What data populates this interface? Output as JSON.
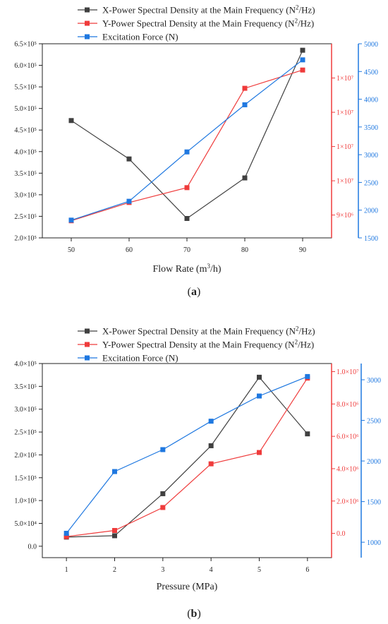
{
  "colors": {
    "x": "#404040",
    "y": "#ef3b3b",
    "f": "#1f78e0",
    "axis": "#222222"
  },
  "chart_data": [
    {
      "type": "line",
      "panel_label": "a",
      "xlabel": "Flow Rate (m3/h)",
      "xlabel_main": "Flow Rate (m",
      "xlabel_sup": "3",
      "xlabel_end": "/h)",
      "x_ticks": [
        "50",
        "60",
        "70",
        "80",
        "90"
      ],
      "xlim": [
        45,
        95
      ],
      "legend": [
        {
          "name": "X-Power Spectral Density at the Main Frequency (N2/Hz)",
          "main": "X-Power Spectral Density at the Main Frequency (N",
          "sup": "2",
          "end": "/Hz)"
        },
        {
          "name": "Y-Power Spectral Density at the Main Frequency (N2/Hz)",
          "main": "Y-Power Spectral Density at the Main Frequency (N",
          "sup": "2",
          "end": "/Hz)"
        },
        {
          "name": "Excitation Force (N)",
          "main": "Excitation Force (N)",
          "sup": "",
          "end": ""
        }
      ],
      "axes": {
        "left": {
          "lim": [
            200000,
            650000
          ],
          "ticks": [
            200000,
            250000,
            300000,
            350000,
            400000,
            450000,
            500000,
            550000,
            600000,
            650000
          ],
          "labels": [
            "2.0×10⁵",
            "2.5×10⁵",
            "3.0×10⁵",
            "3.5×10⁵",
            "4.0×10⁵",
            "4.5×10⁵",
            "5.0×10⁵",
            "5.5×10⁵",
            "6.0×10⁵",
            "6.5×10⁵"
          ]
        },
        "right1": {
          "lim": [
            8800000,
            10500000
          ],
          "ticks": [
            9000000,
            9300000,
            9600000,
            9900000,
            10200000
          ],
          "labels": [
            "9×10⁶",
            "1×10⁷",
            "1×10⁷",
            "1×10⁷",
            "1×10⁷"
          ]
        },
        "right2": {
          "lim": [
            1500,
            5000
          ],
          "ticks": [
            1500,
            2000,
            2500,
            3000,
            3500,
            4000,
            4500,
            5000
          ],
          "labels": [
            "1500",
            "2000",
            "2500",
            "3000",
            "3500",
            "4000",
            "4500",
            "5000"
          ]
        }
      },
      "series": [
        {
          "name": "X-Power Spectral Density at the Main Frequency (N2/Hz)",
          "axis": "left",
          "color_key": "x",
          "x": [
            50,
            60,
            70,
            80,
            90
          ],
          "values": [
            472000,
            383000,
            245000,
            339000,
            635000
          ]
        },
        {
          "name": "Y-Power Spectral Density at the Main Frequency (N2/Hz)",
          "axis": "right1",
          "color_key": "y",
          "x": [
            50,
            60,
            70,
            80,
            90
          ],
          "values": [
            8950000,
            9110000,
            9240000,
            10110000,
            10270000
          ]
        },
        {
          "name": "Excitation Force (N)",
          "axis": "right2",
          "color_key": "f",
          "x": [
            50,
            60,
            70,
            80,
            90
          ],
          "values": [
            1820,
            2160,
            3050,
            3900,
            4710
          ]
        }
      ]
    },
    {
      "type": "line",
      "panel_label": "b",
      "xlabel": "Pressure (MPa)",
      "xlabel_main": "Pressure (MPa)",
      "xlabel_sup": "",
      "xlabel_end": "",
      "x_ticks": [
        "1",
        "2",
        "3",
        "4",
        "5",
        "6"
      ],
      "xlim": [
        0.5,
        6.5
      ],
      "legend": [
        {
          "name": "X-Power Spectral Density at the Main Frequency (N2/Hz)",
          "main": "X-Power Spectral Density at the Main Frequency (N",
          "sup": "2",
          "end": "/Hz)"
        },
        {
          "name": "Y-Power Spectral Density at the Main Frequency (N2/Hz)",
          "main": "Y-Power Spectral Density at the Main Frequency (N",
          "sup": "2",
          "end": "/Hz)"
        },
        {
          "name": "Excitation Force (N)",
          "main": "Excitation Force (N)",
          "sup": "",
          "end": ""
        }
      ],
      "axes": {
        "left": {
          "lim": [
            -25000,
            400000
          ],
          "ticks": [
            0,
            50000,
            100000,
            150000,
            200000,
            250000,
            300000,
            350000,
            400000
          ],
          "labels": [
            "0.0",
            "5.0×10⁴",
            "1.0×10⁵",
            "1.5×10⁵",
            "2.0×10⁵",
            "2.5×10⁵",
            "3.0×10⁵",
            "3.5×10⁵",
            "4.0×10⁵"
          ]
        },
        "right1": {
          "lim": [
            -1500000,
            10500000
          ],
          "ticks": [
            0,
            2000000,
            4000000,
            6000000,
            8000000,
            10000000
          ],
          "labels": [
            "0.0",
            "2.0×10⁶",
            "4.0×10⁶",
            "6.0×10⁶",
            "8.0×10⁶",
            "1.0×10⁷"
          ]
        },
        "right2": {
          "lim": [
            810,
            3200
          ],
          "ticks": [
            1000,
            1500,
            2000,
            2500,
            3000
          ],
          "labels": [
            "1000",
            "1500",
            "2000",
            "2500",
            "3000"
          ]
        }
      },
      "series": [
        {
          "name": "X-Power Spectral Density at the Main Frequency (N2/Hz)",
          "axis": "left",
          "color_key": "x",
          "x": [
            1,
            2,
            3,
            4,
            5,
            6
          ],
          "values": [
            20000,
            23000,
            115000,
            220000,
            370000,
            246000
          ]
        },
        {
          "name": "Y-Power Spectral Density at the Main Frequency (N2/Hz)",
          "axis": "right1",
          "color_key": "y",
          "x": [
            1,
            2,
            3,
            4,
            5,
            6
          ],
          "values": [
            -200000,
            180000,
            1600000,
            4300000,
            5000000,
            9600000
          ]
        },
        {
          "name": "Excitation Force (N)",
          "axis": "right2",
          "color_key": "f",
          "x": [
            1,
            2,
            3,
            4,
            5,
            6
          ],
          "values": [
            1110,
            1870,
            2140,
            2490,
            2800,
            3040
          ]
        }
      ]
    }
  ]
}
